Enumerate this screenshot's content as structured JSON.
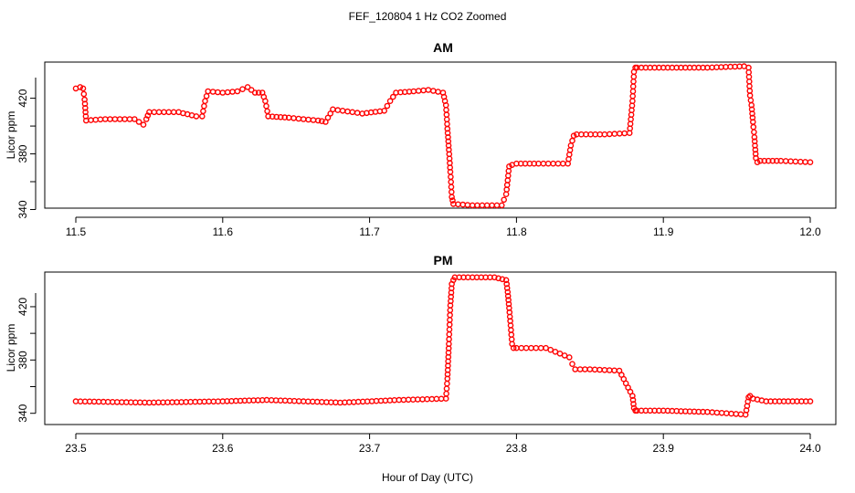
{
  "figure": {
    "title": "FEF_120804  1 Hz CO2 Zoomed",
    "xlabel": "Hour of Day (UTC)"
  },
  "colors": {
    "points": "#ff0000"
  },
  "chart_data": [
    {
      "type": "scatter",
      "title": "AM",
      "xlabel": "Hour of Day (UTC)",
      "ylabel": "Licor ppm",
      "xlim": [
        11.5,
        12.0
      ],
      "ylim": [
        339,
        446
      ],
      "xticks": [
        "11.5",
        "11.6",
        "11.7",
        "11.8",
        "11.9",
        "12.0"
      ],
      "yticks": [
        "340",
        "380",
        "420"
      ],
      "series": [
        {
          "marker": "open-circle",
          "x": [
            11.5,
            11.503,
            11.505,
            11.506,
            11.507,
            11.52,
            11.54,
            11.546,
            11.548,
            11.55,
            11.57,
            11.582,
            11.586,
            11.588,
            11.59,
            11.6,
            11.61,
            11.617,
            11.622,
            11.627,
            11.629,
            11.631,
            11.645,
            11.665,
            11.67,
            11.675,
            11.695,
            11.71,
            11.714,
            11.718,
            11.73,
            11.74,
            11.75,
            11.752,
            11.753,
            11.754,
            11.755,
            11.756,
            11.757,
            11.77,
            11.79,
            11.793,
            11.795,
            11.797,
            11.8,
            11.815,
            11.835,
            11.837,
            11.839,
            11.841,
            11.86,
            11.877,
            11.879,
            11.88,
            11.881,
            11.882,
            11.9,
            11.93,
            11.955,
            11.958,
            11.959,
            11.96,
            11.961,
            11.962,
            11.963,
            11.964,
            11.966,
            11.98,
            12.0
          ],
          "y": [
            427,
            428,
            427,
            419,
            404,
            405,
            405,
            401,
            405,
            410,
            410,
            407,
            407,
            418,
            425,
            424,
            425,
            428,
            424,
            424,
            418,
            407,
            406,
            404,
            403,
            412,
            409,
            411,
            418,
            424,
            425,
            426,
            424,
            415,
            398,
            383,
            367,
            349,
            344,
            343,
            343,
            351,
            371,
            372,
            373,
            373,
            373,
            386,
            393,
            394,
            394,
            395,
            418,
            439,
            442,
            442,
            442,
            442,
            443,
            442,
            422,
            415,
            403,
            392,
            377,
            374,
            375,
            375,
            374
          ]
        }
      ]
    },
    {
      "type": "scatter",
      "title": "PM",
      "xlabel": "Hour of Day (UTC)",
      "ylabel": "Licor ppm",
      "xlim": [
        23.5,
        24.0
      ],
      "ylim": [
        335,
        446
      ],
      "xticks": [
        "23.5",
        "23.6",
        "23.7",
        "23.8",
        "23.9",
        "24.0"
      ],
      "yticks": [
        "340",
        "380",
        "420"
      ],
      "series": [
        {
          "marker": "open-circle",
          "x": [
            23.5,
            23.55,
            23.6,
            23.63,
            23.68,
            23.72,
            23.752,
            23.753,
            23.754,
            23.755,
            23.756,
            23.757,
            23.758,
            23.77,
            23.785,
            23.793,
            23.794,
            23.795,
            23.796,
            23.797,
            23.798,
            23.8,
            23.82,
            23.836,
            23.838,
            23.84,
            23.85,
            23.87,
            23.879,
            23.88,
            23.881,
            23.882,
            23.9,
            23.93,
            23.956,
            23.958,
            23.959,
            23.961,
            23.97,
            24.0
          ],
          "y": [
            349,
            348,
            349,
            350,
            348,
            350,
            351,
            366,
            392,
            421,
            437,
            440,
            442,
            442,
            442,
            440,
            431,
            419,
            406,
            392,
            389,
            389,
            389,
            382,
            377,
            373,
            373,
            372,
            353,
            344,
            342,
            342,
            342,
            341,
            339,
            352,
            353,
            351,
            349,
            349
          ]
        }
      ]
    }
  ]
}
